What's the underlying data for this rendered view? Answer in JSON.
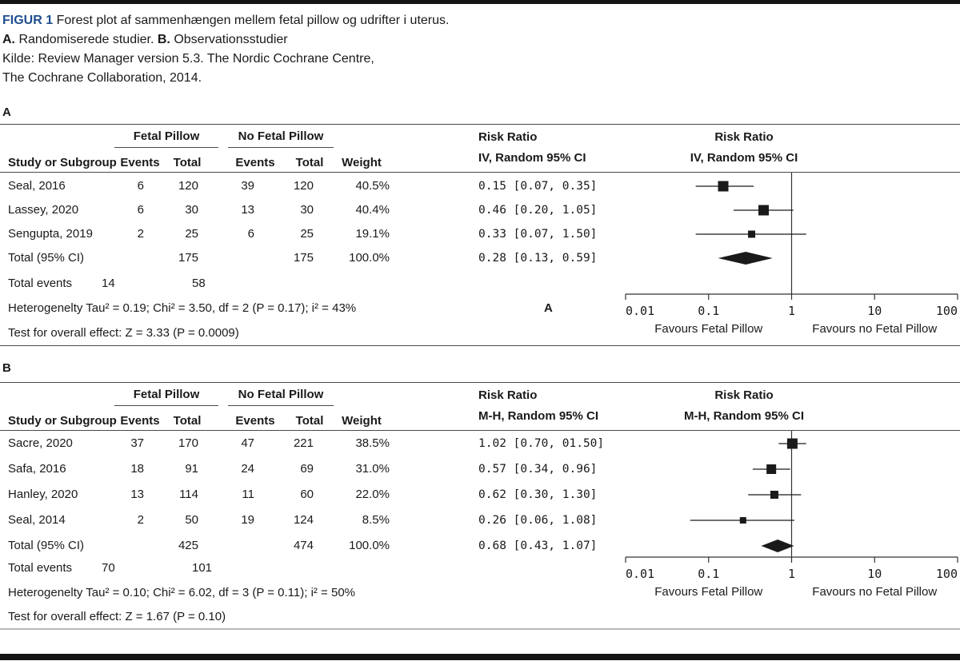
{
  "page": {
    "title_prefix": "FIGUR 1",
    "title_text": " Forest plot af sammenhængen mellem fetal pillow og udrifter i uterus.",
    "subtitle_a_label": "A.",
    "subtitle_a_text": " Randomiserede studier. ",
    "subtitle_b_label": "B.",
    "subtitle_b_text": " Observationsstudier",
    "source_line1": "Kilde: Review Manager version 5.3. The Nordic Cochrane Centre,",
    "source_line2": "The Cochrane Collaboration, 2014.",
    "accent_color": "#1f4e8f"
  },
  "chart_data": [
    {
      "type": "forest",
      "panel_label": "A",
      "headers": {
        "study": "Study or Subgroup",
        "group1": "Fetal Pillow",
        "group2": "No Fetal Pillow",
        "events": "Events",
        "total": "Total",
        "weight": "Weight",
        "rr_line1": "Risk Ratio",
        "rr_line2": "IV, Random 95% CI"
      },
      "studies": [
        {
          "study": "Seal, 2016",
          "events1": "6",
          "total1": "120",
          "events2": "39",
          "total2": "120",
          "weight": "40.5%",
          "weight_pct": 40.5,
          "rr_text": "0.15 [0.07, 0.35]",
          "rr": 0.15,
          "ci_lo": 0.07,
          "ci_hi": 0.35
        },
        {
          "study": "Lassey, 2020",
          "events1": "6",
          "total1": "30",
          "events2": "13",
          "total2": "30",
          "weight": "40.4%",
          "weight_pct": 40.4,
          "rr_text": "0.46 [0.20, 1.05]",
          "rr": 0.46,
          "ci_lo": 0.2,
          "ci_hi": 1.05
        },
        {
          "study": "Sengupta, 2019",
          "events1": "2",
          "total1": "25",
          "events2": "6",
          "total2": "25",
          "weight": "19.1%",
          "weight_pct": 19.1,
          "rr_text": "0.33 [0.07, 1.50]",
          "rr": 0.33,
          "ci_lo": 0.07,
          "ci_hi": 1.5
        }
      ],
      "total": {
        "label": "Total (95% CI)",
        "total1": "175",
        "total2": "175",
        "weight": "100.0%",
        "rr_text": "0.28 [0.13, 0.59]",
        "rr": 0.28,
        "ci_lo": 0.13,
        "ci_hi": 0.59
      },
      "total_events": {
        "label": "Total events",
        "value1": "14",
        "value2": "58"
      },
      "heterogeneity": "Heterogenelty Tau² = 0.19; Chi² = 3.50, df = 2 (P = 0.17); i² = 43%",
      "overall_effect": "Test for overall effect: Z = 3.33 (P = 0.0009)",
      "inner_label": "A",
      "axis": {
        "scale": "log",
        "xlim": [
          0.01,
          100
        ],
        "ticks": [
          0.01,
          0.1,
          1,
          10,
          100
        ],
        "tick_labels": [
          "0.01",
          "0.1",
          "1",
          "10",
          "100"
        ],
        "favours_left": "Favours Fetal Pillow",
        "favours_right": "Favours no Fetal Pillow"
      }
    },
    {
      "type": "forest",
      "panel_label": "B",
      "headers": {
        "study": "Study or Subgroup",
        "group1": "Fetal Pillow",
        "group2": "No Fetal Pillow",
        "events": "Events",
        "total": "Total",
        "weight": "Weight",
        "rr_line1": "Risk Ratio",
        "rr_line2": "M-H, Random 95% CI"
      },
      "studies": [
        {
          "study": "Sacre, 2020",
          "events1": "37",
          "total1": "170",
          "events2": "47",
          "total2": "221",
          "weight": "38.5%",
          "weight_pct": 38.5,
          "rr_text": "1.02 [0.70, 01.50]",
          "rr": 1.02,
          "ci_lo": 0.7,
          "ci_hi": 1.5
        },
        {
          "study": "Safa, 2016",
          "events1": "18",
          "total1": "91",
          "events2": "24",
          "total2": "69",
          "weight": "31.0%",
          "weight_pct": 31.0,
          "rr_text": "0.57 [0.34, 0.96]",
          "rr": 0.57,
          "ci_lo": 0.34,
          "ci_hi": 0.96
        },
        {
          "study": "Hanley, 2020",
          "events1": "13",
          "total1": "114",
          "events2": "11",
          "total2": "60",
          "weight": "22.0%",
          "weight_pct": 22.0,
          "rr_text": "0.62 [0.30, 1.30]",
          "rr": 0.62,
          "ci_lo": 0.3,
          "ci_hi": 1.3
        },
        {
          "study": "Seal, 2014",
          "events1": "2",
          "total1": "50",
          "events2": "19",
          "total2": "124",
          "weight": "8.5%",
          "weight_pct": 8.5,
          "rr_text": "0.26 [0.06, 1.08]",
          "rr": 0.26,
          "ci_lo": 0.06,
          "ci_hi": 1.08
        }
      ],
      "total": {
        "label": "Total (95% CI)",
        "total1": "425",
        "total2": "474",
        "weight": "100.0%",
        "rr_text": "0.68 [0.43, 1.07]",
        "rr": 0.68,
        "ci_lo": 0.43,
        "ci_hi": 1.07
      },
      "total_events": {
        "label": "Total events",
        "value1": "70",
        "value2": "101"
      },
      "heterogeneity": "Heterogenelty Tau² = 0.10; Chi² = 6.02, df = 3 (P = 0.11); i² = 50%",
      "overall_effect": "Test for overall effect: Z = 1.67 (P = 0.10)",
      "inner_label": null,
      "axis": {
        "scale": "log",
        "xlim": [
          0.01,
          100
        ],
        "ticks": [
          0.01,
          0.1,
          1,
          10,
          100
        ],
        "tick_labels": [
          "0.01",
          "0.1",
          "1",
          "10",
          "100"
        ],
        "favours_left": "Favours Fetal Pillow",
        "favours_right": "Favours no Fetal Pillow"
      }
    }
  ]
}
